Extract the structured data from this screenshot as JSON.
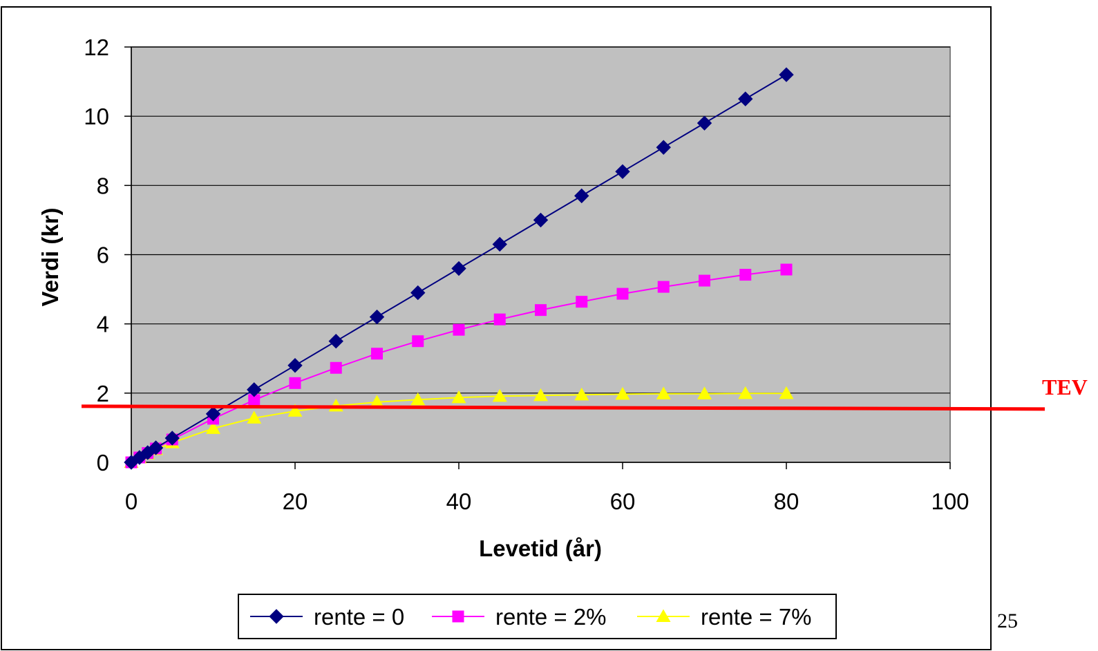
{
  "chart_data": {
    "type": "line",
    "xlabel": "Levetid (år)",
    "ylabel": "Verdi (kr)",
    "xlim": [
      0,
      100
    ],
    "ylim": [
      0,
      12
    ],
    "x_ticks": [
      0,
      20,
      40,
      60,
      80,
      100
    ],
    "y_ticks": [
      0,
      2,
      4,
      6,
      8,
      10,
      12
    ],
    "grid": "horizontal",
    "plot_background": "#C0C0C0",
    "legend_position": "bottom",
    "series": [
      {
        "name": "rente = 0",
        "color": "#000080",
        "marker": "diamond",
        "x": [
          0,
          1,
          2,
          3,
          5,
          10,
          15,
          20,
          25,
          30,
          35,
          40,
          45,
          50,
          55,
          60,
          65,
          70,
          75,
          80
        ],
        "values": [
          0,
          0.14,
          0.28,
          0.42,
          0.7,
          1.4,
          2.1,
          2.8,
          3.5,
          4.2,
          4.9,
          5.6,
          6.3,
          7.0,
          7.7,
          8.4,
          9.1,
          9.8,
          10.5,
          11.2
        ]
      },
      {
        "name": "rente = 2%",
        "color": "#FF00FF",
        "marker": "square",
        "x": [
          0,
          1,
          2,
          3,
          5,
          10,
          15,
          20,
          25,
          30,
          35,
          40,
          45,
          50,
          55,
          60,
          65,
          70,
          75,
          80
        ],
        "values": [
          0,
          0.14,
          0.27,
          0.4,
          0.66,
          1.26,
          1.8,
          2.29,
          2.73,
          3.14,
          3.5,
          3.83,
          4.13,
          4.4,
          4.64,
          4.87,
          5.07,
          5.25,
          5.42,
          5.57
        ]
      },
      {
        "name": "rente = 7%",
        "color": "#FFFF00",
        "marker": "triangle",
        "x": [
          0,
          1,
          2,
          3,
          5,
          10,
          15,
          20,
          25,
          30,
          35,
          40,
          45,
          50,
          55,
          60,
          65,
          70,
          75,
          80
        ],
        "values": [
          0,
          0.13,
          0.25,
          0.37,
          0.57,
          0.98,
          1.28,
          1.48,
          1.63,
          1.74,
          1.81,
          1.87,
          1.91,
          1.93,
          1.95,
          1.97,
          1.98,
          1.98,
          1.99,
          1.99
        ]
      }
    ],
    "reference_line": {
      "label": "TEV",
      "y": 1.6,
      "color": "#FF0000"
    }
  },
  "slide_number": "25"
}
